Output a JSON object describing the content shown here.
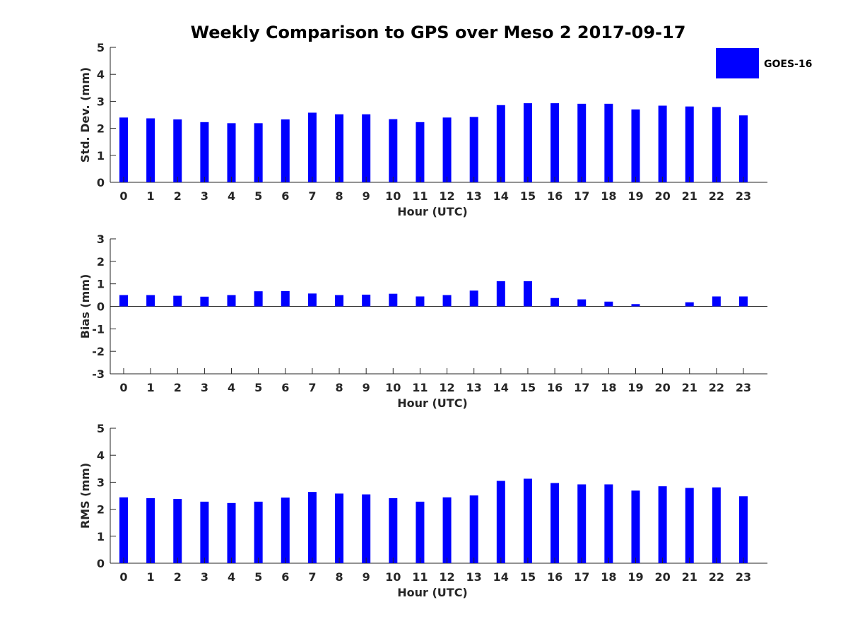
{
  "title": "Weekly Comparison to GPS over Meso 2 2017-09-17",
  "legend": {
    "label": "GOES-16",
    "color": "#0000ff"
  },
  "chart_data": [
    {
      "type": "bar",
      "name": "std-dev",
      "categories": [
        "0",
        "1",
        "2",
        "3",
        "4",
        "5",
        "6",
        "7",
        "8",
        "9",
        "10",
        "11",
        "12",
        "13",
        "14",
        "15",
        "16",
        "17",
        "18",
        "19",
        "20",
        "21",
        "22",
        "23"
      ],
      "values": [
        2.4,
        2.37,
        2.33,
        2.23,
        2.19,
        2.19,
        2.33,
        2.58,
        2.52,
        2.52,
        2.34,
        2.23,
        2.4,
        2.42,
        2.86,
        2.93,
        2.93,
        2.91,
        2.91,
        2.7,
        2.84,
        2.81,
        2.79,
        2.48
      ],
      "xlabel": "Hour (UTC)",
      "ylabel": "Std. Dev. (mm)",
      "ylim": [
        0,
        5
      ],
      "yticks": [
        "0",
        "1",
        "2",
        "3",
        "4",
        "5"
      ],
      "grid": false
    },
    {
      "type": "bar",
      "name": "bias",
      "categories": [
        "0",
        "1",
        "2",
        "3",
        "4",
        "5",
        "6",
        "7",
        "8",
        "9",
        "10",
        "11",
        "12",
        "13",
        "14",
        "15",
        "16",
        "17",
        "18",
        "19",
        "20",
        "21",
        "22",
        "23"
      ],
      "values": [
        0.5,
        0.5,
        0.47,
        0.43,
        0.5,
        0.67,
        0.68,
        0.57,
        0.5,
        0.52,
        0.56,
        0.44,
        0.5,
        0.7,
        1.12,
        1.12,
        0.37,
        0.31,
        0.21,
        0.1,
        0.0,
        0.18,
        0.44,
        0.44
      ],
      "xlabel": "Hour (UTC)",
      "ylabel": "Bias (mm)",
      "ylim": [
        -3,
        3
      ],
      "yticks": [
        "-3",
        "-2",
        "-1",
        "0",
        "1",
        "2",
        "3"
      ],
      "grid": false
    },
    {
      "type": "bar",
      "name": "rms",
      "categories": [
        "0",
        "1",
        "2",
        "3",
        "4",
        "5",
        "6",
        "7",
        "8",
        "9",
        "10",
        "11",
        "12",
        "13",
        "14",
        "15",
        "16",
        "17",
        "18",
        "19",
        "20",
        "21",
        "22",
        "23"
      ],
      "values": [
        2.44,
        2.41,
        2.38,
        2.28,
        2.23,
        2.28,
        2.43,
        2.64,
        2.58,
        2.55,
        2.41,
        2.28,
        2.44,
        2.51,
        3.05,
        3.13,
        2.97,
        2.92,
        2.92,
        2.69,
        2.85,
        2.79,
        2.81,
        2.48
      ],
      "xlabel": "Hour (UTC)",
      "ylabel": "RMS (mm)",
      "ylim": [
        0,
        5
      ],
      "yticks": [
        "0",
        "1",
        "2",
        "3",
        "4",
        "5"
      ],
      "grid": false
    }
  ]
}
